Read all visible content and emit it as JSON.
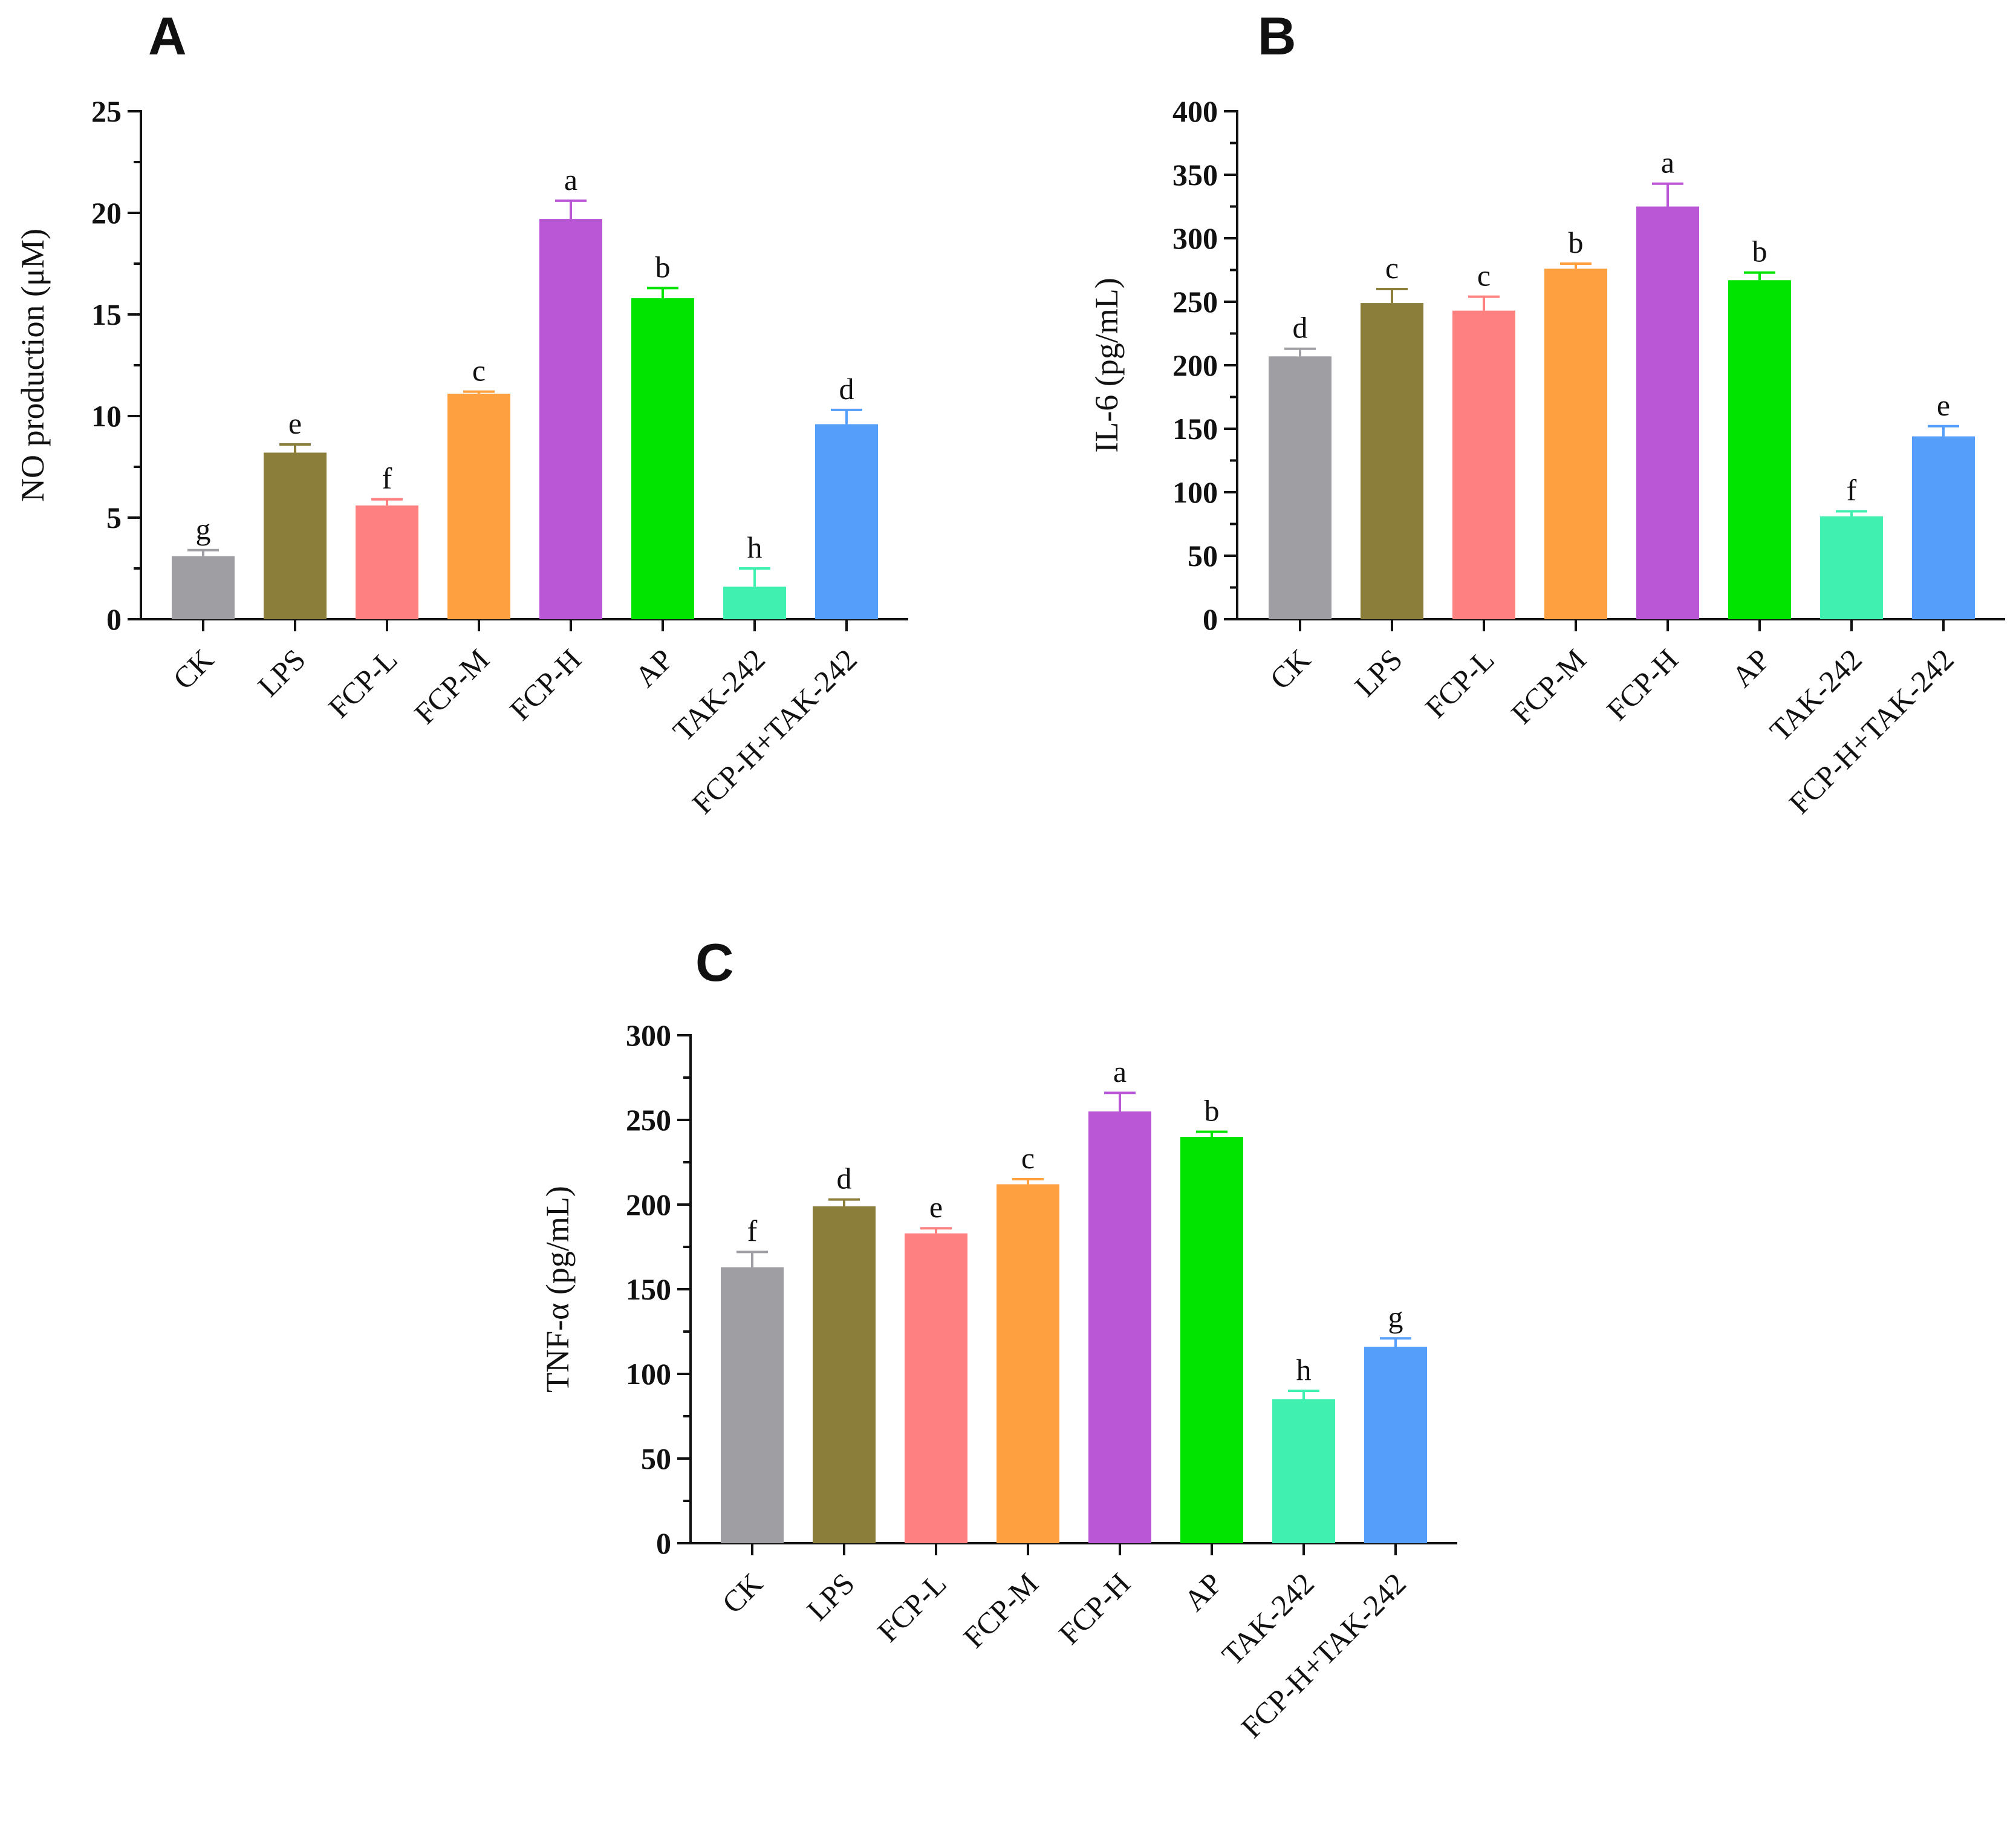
{
  "categories": [
    "CK",
    "LPS",
    "FCP-L",
    "FCP-M",
    "FCP-H",
    "AP",
    "TAK-242",
    "FCP-H+TAK-242"
  ],
  "colors": [
    "#9f9ea2",
    "#8b7d3a",
    "#ff8080",
    "#ffa040",
    "#b957d6",
    "#00e400",
    "#40f0b0",
    "#559ffb"
  ],
  "chart_data": [
    {
      "panel": "A",
      "type": "bar",
      "ylabel": "NO production (μM)",
      "categories": [
        "CK",
        "LPS",
        "FCP-L",
        "FCP-M",
        "FCP-H",
        "AP",
        "TAK-242",
        "FCP-H+TAK-242"
      ],
      "values": [
        3.1,
        8.2,
        5.6,
        11.1,
        19.7,
        15.8,
        1.6,
        9.6
      ],
      "errors": [
        0.3,
        0.4,
        0.3,
        0.1,
        0.9,
        0.5,
        0.9,
        0.7
      ],
      "letters": [
        "g",
        "e",
        "f",
        "c",
        "a",
        "b",
        "h",
        "d"
      ],
      "ylim": [
        0,
        25
      ],
      "yticks": [
        0,
        5,
        10,
        15,
        20,
        25
      ],
      "minor_ticks": true
    },
    {
      "panel": "B",
      "type": "bar",
      "ylabel": "IL-6 (pg/mL)",
      "categories": [
        "CK",
        "LPS",
        "FCP-L",
        "FCP-M",
        "FCP-H",
        "AP",
        "TAK-242",
        "FCP-H+TAK-242"
      ],
      "values": [
        207,
        249,
        243,
        276,
        325,
        267,
        81,
        144
      ],
      "errors": [
        6,
        11,
        11,
        4,
        18,
        6,
        4,
        8
      ],
      "letters": [
        "d",
        "c",
        "c",
        "b",
        "a",
        "b",
        "f",
        "e"
      ],
      "ylim": [
        0,
        400
      ],
      "yticks": [
        0,
        50,
        100,
        150,
        200,
        250,
        300,
        350,
        400
      ],
      "minor_ticks": true
    },
    {
      "panel": "C",
      "type": "bar",
      "ylabel": "TNF-α (pg/mL)",
      "categories": [
        "CK",
        "LPS",
        "FCP-L",
        "FCP-M",
        "FCP-H",
        "AP",
        "TAK-242",
        "FCP-H+TAK-242"
      ],
      "values": [
        163,
        199,
        183,
        212,
        255,
        240,
        85,
        116
      ],
      "errors": [
        9,
        4,
        3,
        3,
        11,
        3,
        5,
        5
      ],
      "letters": [
        "f",
        "d",
        "e",
        "c",
        "a",
        "b",
        "h",
        "g"
      ],
      "ylim": [
        0,
        300
      ],
      "yticks": [
        0,
        50,
        100,
        150,
        200,
        250,
        300
      ],
      "minor_ticks": true
    }
  ]
}
